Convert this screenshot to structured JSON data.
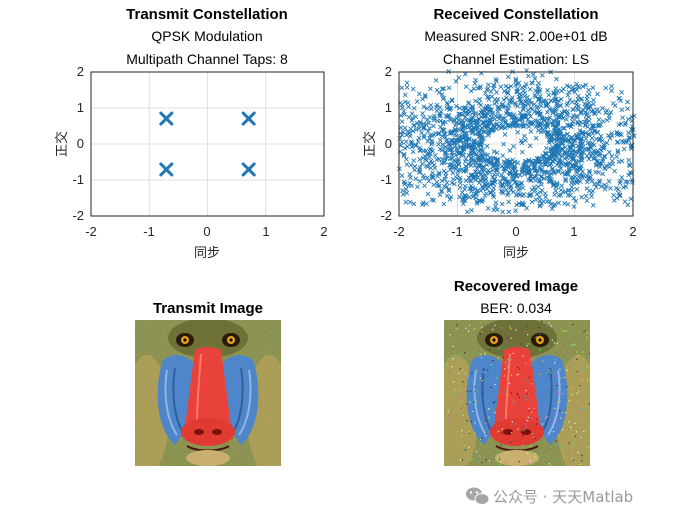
{
  "chart_data": [
    {
      "type": "scatter",
      "title": "Transmit Constellation",
      "subtitle_lines": [
        "QPSK Modulation",
        "Multipath Channel Taps: 8"
      ],
      "xlabel": "同步",
      "ylabel": "正交",
      "xlim": [
        -2,
        2
      ],
      "ylim": [
        -2,
        2
      ],
      "xticks": [
        "-2",
        "-1",
        "0",
        "1",
        "2"
      ],
      "yticks": [
        "2",
        "1",
        "0",
        "-1",
        "-2"
      ],
      "grid": true,
      "marker": "x",
      "color": "#1f77b4",
      "points": [
        [
          -0.707,
          0.707
        ],
        [
          0.707,
          0.707
        ],
        [
          -0.707,
          -0.707
        ],
        [
          0.707,
          -0.707
        ]
      ]
    },
    {
      "type": "scatter",
      "title": "Received Constellation",
      "subtitle_lines": [
        "Measured SNR: 2.00e+01 dB",
        "Channel Estimation: LS"
      ],
      "xlabel": "同步",
      "ylabel": "正交",
      "xlim": [
        -2,
        2
      ],
      "ylim": [
        -2,
        2
      ],
      "xticks": [
        "-2",
        "-1",
        "0",
        "1",
        "2"
      ],
      "yticks": [
        "2",
        "1",
        "0",
        "-1",
        "-2"
      ],
      "grid": true,
      "marker": "x",
      "color": "#1f77b4",
      "distribution": "dense cloud of received symbols filling roughly x in [-2, 2], y in [-2, 2], with a less dense center region"
    }
  ],
  "images": {
    "transmit": {
      "title": "Transmit Image",
      "subject": "mandrill-face"
    },
    "recovered": {
      "title": "Recovered Image",
      "subtitle": "BER: 0.034",
      "subject": "mandrill-face"
    }
  },
  "watermark": {
    "text": "公众号 · 天天Matlab",
    "icon": "wechat-icon"
  }
}
